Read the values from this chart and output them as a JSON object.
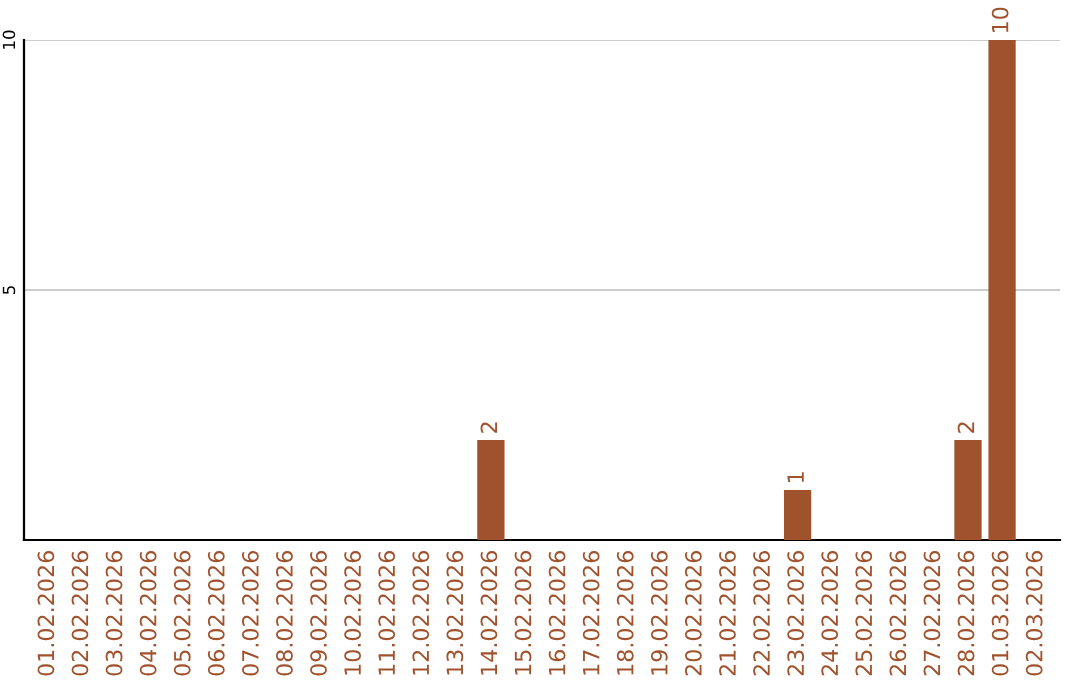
{
  "chart_data": {
    "type": "bar",
    "categories": [
      "01.02.2026",
      "02.02.2026",
      "03.02.2026",
      "04.02.2026",
      "05.02.2026",
      "06.02.2026",
      "07.02.2026",
      "08.02.2026",
      "09.02.2026",
      "10.02.2026",
      "11.02.2026",
      "12.02.2026",
      "13.02.2026",
      "14.02.2026",
      "15.02.2026",
      "16.02.2026",
      "17.02.2026",
      "18.02.2026",
      "19.02.2026",
      "20.02.2026",
      "21.02.2026",
      "22.02.2026",
      "23.02.2026",
      "24.02.2026",
      "25.02.2026",
      "26.02.2026",
      "27.02.2026",
      "28.02.2026",
      "01.03.2026",
      "02.03.2026"
    ],
    "values": [
      0,
      0,
      0,
      0,
      0,
      0,
      0,
      0,
      0,
      0,
      0,
      0,
      0,
      2,
      0,
      0,
      0,
      0,
      0,
      0,
      0,
      0,
      1,
      0,
      0,
      0,
      0,
      2,
      10,
      0
    ],
    "value_labels": [
      null,
      null,
      null,
      null,
      null,
      null,
      null,
      null,
      null,
      null,
      null,
      null,
      null,
      "2",
      null,
      null,
      null,
      null,
      null,
      null,
      null,
      null,
      "1",
      null,
      null,
      null,
      null,
      "2",
      "10",
      null
    ],
    "color": "#a0522d",
    "ylim": [
      0,
      10
    ],
    "yticks": [
      5,
      10
    ],
    "grid": "y"
  }
}
